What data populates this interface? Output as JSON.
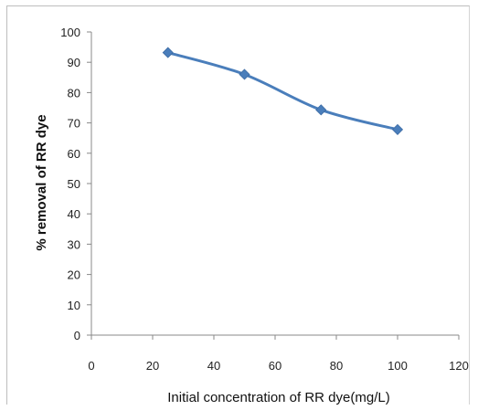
{
  "chart_data": {
    "type": "line",
    "title": "",
    "xlabel": "Initial concentration of RR dye(mg/L)",
    "ylabel": "% removal of RR dye",
    "xlim": [
      0,
      120
    ],
    "ylim": [
      0,
      100
    ],
    "xticks": [
      0,
      20,
      40,
      60,
      80,
      100,
      120
    ],
    "yticks": [
      0,
      10,
      20,
      30,
      40,
      50,
      60,
      70,
      80,
      90,
      100
    ],
    "grid": false,
    "legend": "none",
    "series": [
      {
        "color": "#4a7ebb",
        "marker": "diamond",
        "x": [
          25,
          50,
          75,
          100
        ],
        "y": [
          93.2,
          86,
          74.3,
          67.8
        ]
      }
    ]
  }
}
